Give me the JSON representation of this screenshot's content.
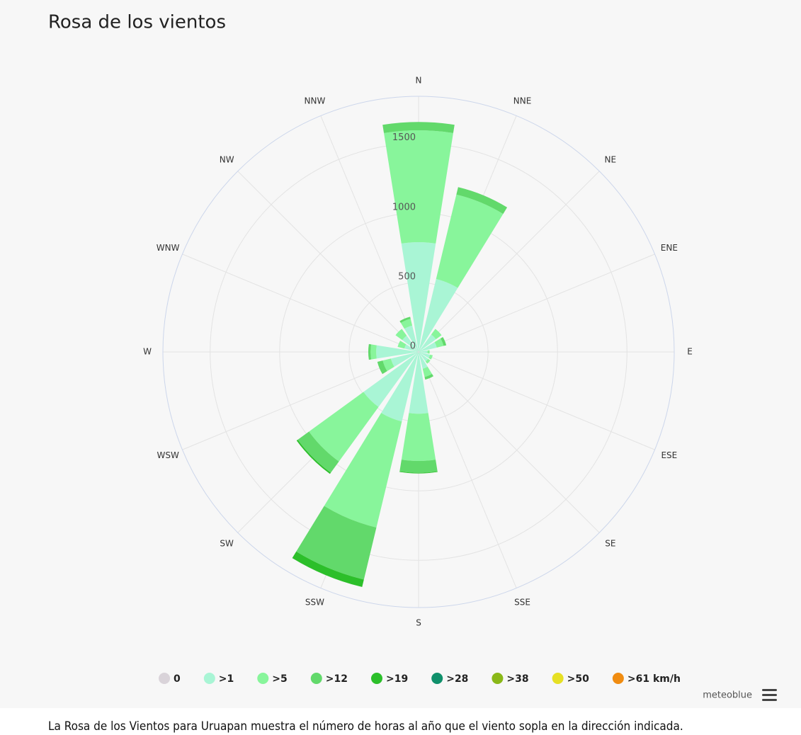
{
  "title": "Rosa de los vientos",
  "chart_data": {
    "type": "windrose",
    "categories": [
      "N",
      "NNE",
      "NE",
      "ENE",
      "E",
      "ESE",
      "SE",
      "SSE",
      "S",
      "SSW",
      "SW",
      "WSW",
      "W",
      "WNW",
      "NW",
      "NNW"
    ],
    "ylim": [
      0,
      1840
    ],
    "yticks": [
      0,
      500,
      1000,
      1500
    ],
    "grid": true,
    "series": [
      {
        "name": "0",
        "color": "#d9d3d9",
        "values": [
          5,
          5,
          5,
          5,
          5,
          5,
          5,
          5,
          5,
          5,
          5,
          5,
          5,
          5,
          5,
          5
        ]
      },
      {
        "name": ">1",
        "color": "#a9f5d5",
        "values": [
          785,
          535,
          150,
          130,
          60,
          80,
          80,
          120,
          440,
          510,
          485,
          200,
          300,
          100,
          140,
          190
        ]
      },
      {
        "name": ">5",
        "color": "#88f59b",
        "values": [
          805,
          625,
          50,
          50,
          15,
          20,
          20,
          60,
          340,
          785,
          485,
          60,
          40,
          50,
          60,
          50
        ]
      },
      {
        "name": ">12",
        "color": "#62d96b",
        "values": [
          60,
          55,
          0,
          20,
          0,
          0,
          0,
          20,
          85,
          385,
          100,
          40,
          17,
          0,
          0,
          15
        ]
      },
      {
        "name": ">19",
        "color": "#2cbf2a",
        "values": [
          0,
          0,
          0,
          0,
          0,
          0,
          0,
          0,
          5,
          55,
          10,
          0,
          0,
          0,
          0,
          0
        ]
      },
      {
        "name": ">28",
        "color": "#10906b",
        "values": [
          0,
          0,
          0,
          0,
          0,
          0,
          0,
          0,
          0,
          0,
          0,
          0,
          0,
          0,
          0,
          0
        ]
      },
      {
        "name": ">38",
        "color": "#8ab818",
        "values": [
          0,
          0,
          0,
          0,
          0,
          0,
          0,
          0,
          0,
          0,
          0,
          0,
          0,
          0,
          0,
          0
        ]
      },
      {
        "name": ">50",
        "color": "#e6e024",
        "values": [
          0,
          0,
          0,
          0,
          0,
          0,
          0,
          0,
          0,
          0,
          0,
          0,
          0,
          0,
          0,
          0
        ]
      },
      {
        "name": ">61 km/h",
        "color": "#f08c11",
        "values": [
          0,
          0,
          0,
          0,
          0,
          0,
          0,
          0,
          0,
          0,
          0,
          0,
          0,
          0,
          0,
          0
        ]
      }
    ]
  },
  "credit": "meteoblue",
  "note": "La Rosa de los Vientos para Uruapan muestra el número de horas al año que el viento sopla en la dirección indicada."
}
